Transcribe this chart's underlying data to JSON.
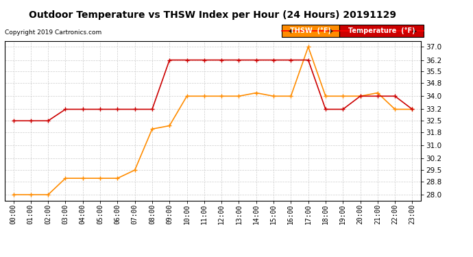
{
  "title": "Outdoor Temperature vs THSW Index per Hour (24 Hours) 20191129",
  "copyright": "Copyright 2019 Cartronics.com",
  "hours": [
    "00:00",
    "01:00",
    "02:00",
    "03:00",
    "04:00",
    "05:00",
    "06:00",
    "07:00",
    "08:00",
    "09:00",
    "10:00",
    "11:00",
    "12:00",
    "13:00",
    "14:00",
    "15:00",
    "16:00",
    "17:00",
    "18:00",
    "19:00",
    "20:00",
    "21:00",
    "22:00",
    "23:00"
  ],
  "thsw": [
    28.0,
    28.0,
    28.0,
    29.0,
    29.0,
    29.0,
    29.0,
    29.5,
    32.0,
    32.2,
    34.0,
    34.0,
    34.0,
    34.0,
    34.2,
    34.0,
    34.0,
    37.0,
    34.0,
    34.0,
    34.0,
    34.2,
    33.2,
    33.2
  ],
  "temp": [
    32.5,
    32.5,
    32.5,
    33.2,
    33.2,
    33.2,
    33.2,
    33.2,
    33.2,
    36.2,
    36.2,
    36.2,
    36.2,
    36.2,
    36.2,
    36.2,
    36.2,
    36.2,
    33.2,
    33.2,
    34.0,
    34.0,
    34.0,
    33.2
  ],
  "thsw_color": "#FF8C00",
  "temp_color": "#CC0000",
  "ylim_min": 27.65,
  "ylim_max": 37.35,
  "yticks": [
    28.0,
    28.8,
    29.5,
    30.2,
    31.0,
    31.8,
    32.5,
    33.2,
    34.0,
    34.8,
    35.5,
    36.2,
    37.0
  ],
  "background_color": "#FFFFFF",
  "grid_color": "#CCCCCC",
  "legend_thsw_label": "THSW  (°F)",
  "legend_temp_label": "Temperature  (°F)",
  "legend_thsw_bg": "#FF8C00",
  "legend_temp_bg": "#CC0000"
}
